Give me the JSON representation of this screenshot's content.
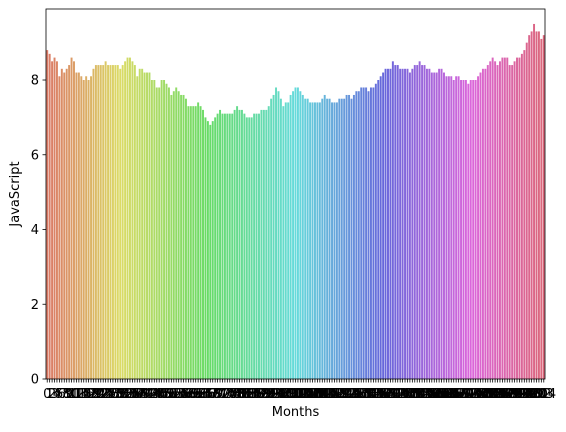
{
  "chart_data": {
    "type": "bar",
    "xlabel": "Months",
    "ylabel": "JavaScript",
    "ylim": [
      0,
      9.9
    ],
    "yticks": [
      0,
      2,
      4,
      6,
      8
    ],
    "grid": false,
    "legend": "none",
    "palette": "seaborn husl hue progression across bars",
    "categories": [
      0,
      1,
      2,
      3,
      4,
      5,
      6,
      7,
      8,
      9,
      10,
      11,
      12,
      13,
      14,
      15,
      16,
      17,
      18,
      19,
      20,
      21,
      22,
      23,
      24,
      25,
      26,
      27,
      28,
      29,
      30,
      31,
      32,
      33,
      34,
      35,
      36,
      37,
      38,
      39,
      40,
      41,
      42,
      43,
      44,
      45,
      46,
      47,
      48,
      49,
      50,
      51,
      52,
      53,
      54,
      55,
      56,
      57,
      58,
      59,
      60,
      61,
      62,
      63,
      64,
      65,
      66,
      67,
      68,
      69,
      70,
      71,
      72,
      73,
      74,
      75,
      76,
      77,
      78,
      79,
      80,
      81,
      82,
      83,
      84,
      85,
      86,
      87,
      88,
      89,
      90,
      91,
      92,
      93,
      94,
      95,
      96,
      97,
      98,
      99,
      100,
      101,
      102,
      103,
      104,
      105,
      106,
      107,
      108,
      109,
      110,
      111,
      112,
      113,
      114,
      115,
      116,
      117,
      118,
      119,
      120,
      121,
      122,
      123,
      124,
      125,
      126,
      127,
      128,
      129,
      130,
      131,
      132,
      133,
      134,
      135,
      136,
      137,
      138,
      139,
      140,
      141,
      142,
      143,
      144,
      145,
      146,
      147,
      148,
      149,
      150,
      151,
      152,
      153,
      154,
      155,
      156,
      157,
      158,
      159,
      160,
      161,
      162,
      163,
      164,
      165,
      166,
      167,
      168,
      169,
      170,
      171,
      172,
      173,
      174,
      175,
      176,
      177,
      178,
      179,
      180,
      181,
      182,
      183,
      184,
      185,
      186,
      187,
      188,
      189,
      190,
      191,
      192,
      193,
      194,
      195,
      196,
      197,
      198,
      199,
      200,
      201,
      202,
      203,
      204
    ],
    "values": [
      8.8,
      8.7,
      8.5,
      8.6,
      8.5,
      8.1,
      8.3,
      8.2,
      8.3,
      8.4,
      8.6,
      8.5,
      8.2,
      8.2,
      8.1,
      8.0,
      8.1,
      8.0,
      8.1,
      8.3,
      8.4,
      8.4,
      8.4,
      8.4,
      8.5,
      8.4,
      8.4,
      8.4,
      8.4,
      8.4,
      8.3,
      8.4,
      8.5,
      8.6,
      8.6,
      8.5,
      8.4,
      8.1,
      8.3,
      8.3,
      8.2,
      8.2,
      8.2,
      8.0,
      8.0,
      7.8,
      7.8,
      8.0,
      8.0,
      7.9,
      7.8,
      7.6,
      7.7,
      7.8,
      7.7,
      7.6,
      7.6,
      7.5,
      7.3,
      7.3,
      7.3,
      7.3,
      7.4,
      7.3,
      7.2,
      7.0,
      6.9,
      6.8,
      6.9,
      7.0,
      7.1,
      7.2,
      7.1,
      7.1,
      7.1,
      7.1,
      7.1,
      7.2,
      7.3,
      7.2,
      7.2,
      7.1,
      7.0,
      7.0,
      7.0,
      7.1,
      7.1,
      7.1,
      7.2,
      7.2,
      7.2,
      7.3,
      7.5,
      7.6,
      7.8,
      7.7,
      7.5,
      7.3,
      7.4,
      7.4,
      7.6,
      7.7,
      7.8,
      7.8,
      7.7,
      7.6,
      7.5,
      7.5,
      7.4,
      7.4,
      7.4,
      7.4,
      7.4,
      7.5,
      7.6,
      7.5,
      7.5,
      7.4,
      7.4,
      7.4,
      7.5,
      7.5,
      7.5,
      7.6,
      7.6,
      7.5,
      7.6,
      7.7,
      7.7,
      7.8,
      7.8,
      7.8,
      7.7,
      7.8,
      7.8,
      7.9,
      8.0,
      8.1,
      8.2,
      8.3,
      8.3,
      8.3,
      8.5,
      8.4,
      8.4,
      8.3,
      8.3,
      8.3,
      8.3,
      8.2,
      8.3,
      8.4,
      8.4,
      8.5,
      8.4,
      8.4,
      8.3,
      8.3,
      8.2,
      8.2,
      8.2,
      8.3,
      8.3,
      8.2,
      8.1,
      8.1,
      8.1,
      8.0,
      8.1,
      8.1,
      8.0,
      8.0,
      8.0,
      7.9,
      8.0,
      8.0,
      8.0,
      8.1,
      8.2,
      8.3,
      8.3,
      8.4,
      8.5,
      8.6,
      8.5,
      8.4,
      8.5,
      8.6,
      8.6,
      8.6,
      8.4,
      8.4,
      8.5,
      8.6,
      8.6,
      8.7,
      8.8,
      9.0,
      9.2,
      9.3,
      9.5,
      9.3,
      9.3,
      9.1,
      9.2
    ]
  }
}
